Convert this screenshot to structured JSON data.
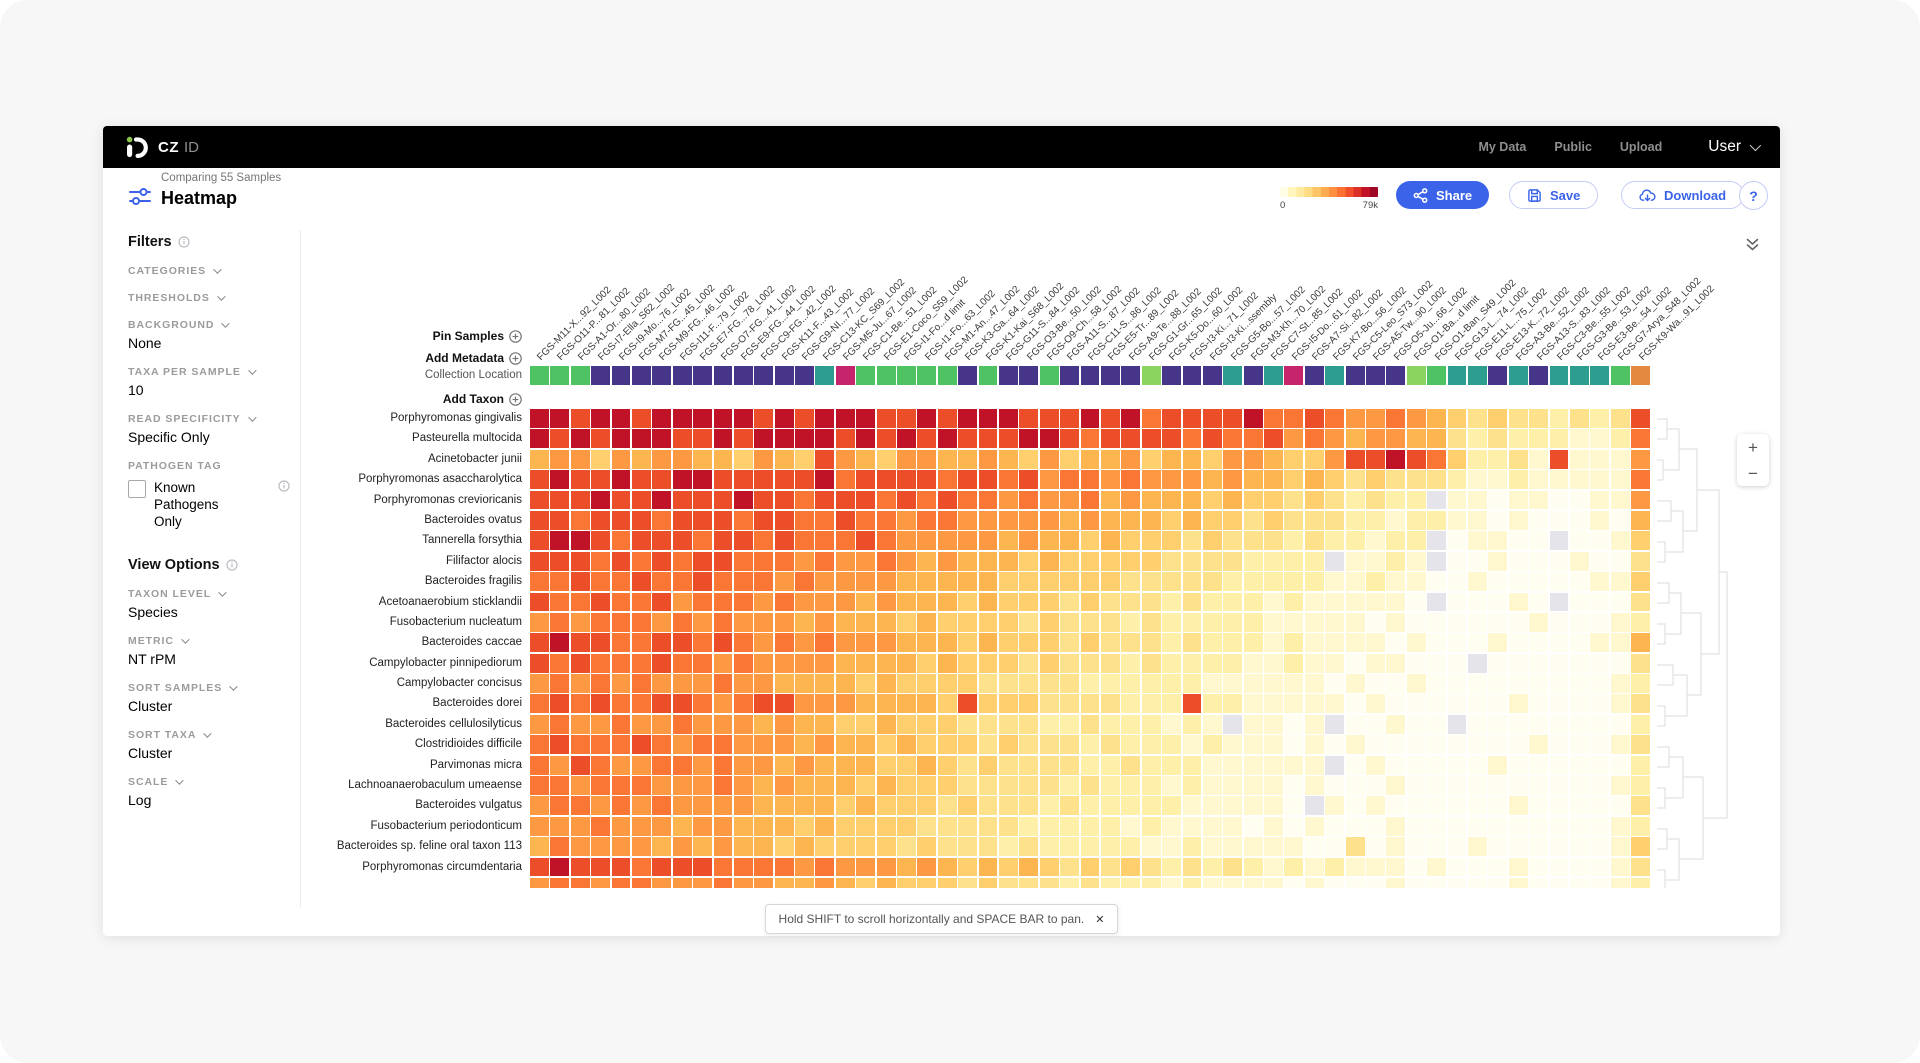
{
  "nav": {
    "brand_cz": "CZ",
    "brand_id": "ID",
    "links": [
      {
        "label": "My Data"
      },
      {
        "label": "Public"
      },
      {
        "label": "Upload"
      }
    ],
    "user_label": "User"
  },
  "header": {
    "subtitle": "Comparing 55 Samples",
    "title": "Heatmap",
    "legend": {
      "min": "0",
      "max": "79k",
      "colors": [
        "#FFFDE3",
        "#FFF6BD",
        "#FEEA9E",
        "#FEDB82",
        "#FEC566",
        "#FDAB4E",
        "#FD8F41",
        "#FB7134",
        "#F0512B",
        "#DC2F26",
        "#C01328",
        "#A00626"
      ]
    },
    "share_label": "Share",
    "save_label": "Save",
    "download_label": "Download",
    "help_label": "?"
  },
  "sidebar": {
    "filters_title": "Filters",
    "filter_items": [
      {
        "label": "CATEGORIES",
        "value": ""
      },
      {
        "label": "THRESHOLDS",
        "value": ""
      },
      {
        "label": "BACKGROUND",
        "value": "None"
      },
      {
        "label": "TAXA PER SAMPLE",
        "value": "10"
      },
      {
        "label": "READ SPECIFICITY",
        "value": "Specific Only"
      }
    ],
    "pathogen_tag": {
      "label": "PATHOGEN TAG",
      "checkbox_label": "Known Pathogens Only",
      "checked": false
    },
    "view_options_title": "View Options",
    "view_items": [
      {
        "label": "TAXON LEVEL",
        "value": "Species"
      },
      {
        "label": "METRIC",
        "value": "NT rPM"
      },
      {
        "label": "SORT SAMPLES",
        "value": "Cluster"
      },
      {
        "label": "SORT TAXA",
        "value": "Cluster"
      },
      {
        "label": "SCALE",
        "value": "Log"
      }
    ]
  },
  "heatmap": {
    "pin_samples_label": "Pin Samples",
    "add_metadata_label": "Add Metadata",
    "metadata_row_label": "Collection Location",
    "add_taxon_label": "Add Taxon",
    "samples": [
      "FGS-M11-X...92_L002",
      "FGS-O11-P...81_L002",
      "FGS-A1-Or...80_L002",
      "FGS-I7-Ella_S62_L002",
      "FGS-I9-Mo...76_L002",
      "FGS-M7-FG...45_L002",
      "FGS-M9-FG...46_L002",
      "FGS-I11-F...79_L002",
      "FGS-E7-FG...78_L002",
      "FGS-O7-FG...41_L002",
      "FGS-E9-FG...44_L002",
      "FGS-C9-FG...42_L002",
      "FGS-K11-F...43_L002",
      "FGS-G9-NI...77_L002",
      "FGS-C13-KC_S69_L002",
      "FGS-M5-Ju...67_L002",
      "FGS-C1-Be...51_L002",
      "FGS-E1-Coco_S59_L002",
      "FGS-I1-Fo...d limit",
      "FGS-I1-Fo...63_L002",
      "FGS-M1-An...47_L002",
      "FGS-K3-Ga...64_L002",
      "FGS-K1-Kai_S68_L002",
      "FGS-G11-S...84_L002",
      "FGS-O3-Be...50_L002",
      "FGS-O9-Ch...58_L002",
      "FGS-A11-S...87_L002",
      "FGS-C11-S...86_L002",
      "FGS-E5-Tr...89_L002",
      "FGS-A9-Te...88_L002",
      "FGS-G1-Gr...65_L002",
      "FGS-K5-Do...60_L002",
      "FGS-I3-Ki...71_L002",
      "FGS-I3-Ki...ssembly",
      "FGS-G5-Bo...57_L002",
      "FGS-M3-Kh...70_L002",
      "FGS-C7-St...85_L002",
      "FGS-I5-Do...61_L002",
      "FGS-A7-Si...82_L002",
      "FGS-K7-Bo...56_L002",
      "FGS-C5-Leo_S73_L002",
      "FGS-A5-Tw...90_L002",
      "FGS-O5-Ju...66_L002",
      "FGS-O1-Ba...d limit",
      "FGS-O1-Ban_S49_L002",
      "FGS-G13-L...74_L002",
      "FGS-E11-L...75_L002",
      "FGS-E13-K...72_L002",
      "FGS-A3-Be...52_L002",
      "FGS-A13-S...83_L002",
      "FGS-C3-Be...55_L002",
      "FGS-G3-Be...53_L002",
      "FGS-E3-Be...54_L002",
      "FGS-G7-Arya_S48_L002",
      "FGS-K9-Wa...91_L002"
    ],
    "location_colors": "GGGPPPPPPPPPPPTCGGGGGPGPPGPPPPLPPPTPTCPTPPPLGTTPTPTTTGO",
    "location_palette": {
      "G": "#4fc264",
      "L": "#8ad45f",
      "P": "#473589",
      "T": "#2d9d90",
      "C": "#c6256d",
      "O": "#e2883f"
    },
    "cell_palette": [
      "#FFFEF0",
      "#FFF8CE",
      "#FEEFA9",
      "#FEE28B",
      "#FECF6C",
      "#FDB54F",
      "#FD9942",
      "#FA7635",
      "#EC4E2A",
      "#C01328"
    ],
    "missing_color": "#E4E4EA",
    "rows": [
      {
        "label": "Porphyromonas gingivalis",
        "cells": "99899 89999 98989 99889 89998 88989 78888 97787 66765 43433 23238"
      },
      {
        "label": "Pasteurella multocida",
        "cells": "98989 99889 89999 89898 98889 98788 88787 78676 56655 32322 21127"
      },
      {
        "label": "Acinetobacter junii",
        "cells": "56646 56655 46548 65466 55654 64556 45546 65446 88987 42231 81116"
      },
      {
        "label": "Porphyromonas asaccharolytica",
        "cells": "89889 88998 88889 78888 78878 67767 66656 55454 34333 21121 11117"
      },
      {
        "label": "Porphyromonas crevioricanis",
        "cells": "88898 89888 98878 88787 87767 66756 55545 44343 2322g 11011 00116"
      },
      {
        "label": "Bacteroides ovatus",
        "cells": "88788 87888 78877 87767 76666 65655 54544 34333 22122 11010 00105"
      },
      {
        "label": "Tannerella forsythia",
        "cells": "89987 88878 87877 78766 66656 55454 44343 33232 2122g 01100 g0014"
      },
      {
        "label": "Filifactor alocis",
        "cells": "88878 78788 77767 66765 65554 54444 43333 2222g 1121g 00100 01003"
      },
      {
        "label": "Bacteroides fragilis",
        "cells": "77877 87787 77676 66655 55544 44443 33332 22221 12110 01000 00114"
      },
      {
        "label": "Acetoanaerobium sticklandii",
        "cells": "87787 78677 76766 65655 54544 43433 32322 21211 1110g 00010 g0003"
      },
      {
        "label": "Fusobacterium nucleatum",
        "cells": "67677 76767 66656 55545 44443 43332 32222 21111 10100 00001 00012"
      },
      {
        "label": "Bacteroides caccae",
        "cells": "89887 78878 76767 66655 54544 43433 32322 21211 11010 00100 00115"
      },
      {
        "label": "Campylobacter pinnipediorum",
        "cells": "87877 78776 76666 55554 54443 43332 32222 11211 01100 0g000 00003"
      },
      {
        "label": "Campylobacter concisus",
        "cells": "67676 76667 66555 54544 44333 33222 22211 11110 10010 00000 00012"
      },
      {
        "label": "Bacteroides dorei",
        "cells": "78787 78876 78866 65555 48444 33332 22822 11111 01000 00010 00013"
      },
      {
        "label": "Bacteroides cellulosilyticus",
        "cells": "67667 66766 65655 44544 43333 22322 2121g 1101g 00100 g0000 00002"
      },
      {
        "label": "Clostridioides difficile",
        "cells": "78777 87677 66656 55454 44343 33232 22121 11010 10000 00001 00013"
      },
      {
        "label": "Parvimonas micra",
        "cells": "76876 67767 66565 55445 43433 33223 22211 1111g 01000 00100 00002"
      },
      {
        "label": "Lachnoanaerobaculum umeaense",
        "cells": "77677 76667 65655 54544 43333 32322 21211 11010 00100 00000 00012"
      },
      {
        "label": "Bacteroides vulgatus",
        "cells": "67767 67666 65555 45444 34333 23222 22111 110g1 01000 00010 00003"
      },
      {
        "label": "Fusobacterium periodonticum",
        "cells": "66676 66566 55545 44443 33332 22221 21111 01010 00100 00000 00012"
      },
      {
        "label": "Bacteroides sp. feline oral taxon 113",
        "cells": "57666 65656 55454 44434 33323 22222 11211 11100 30100 01000 00014"
      },
      {
        "label": "Porphyromonas circumdentaria",
        "cells": "89888 78887 77767 66656 54545 43434 32323 21212 11101 00010 00013"
      },
      {
        "label": "",
        "cells": "67767 76667 66556 54544 43433 32322 21211 11010 00100 00010 00012"
      }
    ],
    "zoom_in_label": "+",
    "zoom_out_label": "−"
  },
  "footer_tooltip": {
    "text": "Hold SHIFT to scroll horizontally and SPACE BAR to pan.",
    "close": "✕"
  },
  "colors": {
    "accent_blue": "#3B63EA",
    "nav_black": "#000000",
    "logo_green": "#8BC34A"
  }
}
